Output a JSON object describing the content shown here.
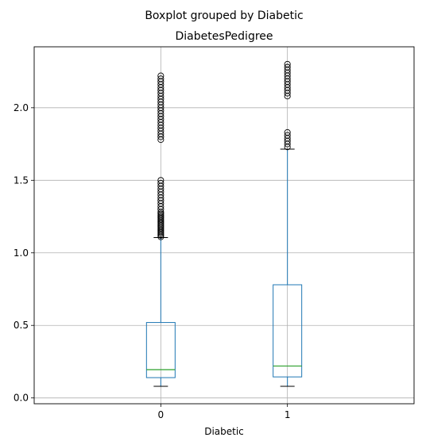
{
  "chart_data": {
    "type": "boxplot",
    "suptitle": "Boxplot grouped by Diabetic",
    "title": "DiabetesPedigree",
    "xlabel": "Diabetic",
    "ylabel": "",
    "categories": [
      "0",
      "1"
    ],
    "ylim": [
      -0.04,
      2.42
    ],
    "yticks": [
      0.0,
      0.5,
      1.0,
      1.5,
      2.0
    ],
    "ytick_labels": [
      "0.0",
      "0.5",
      "1.0",
      "1.5",
      "2.0"
    ],
    "grid": true,
    "boxes": [
      {
        "category": "0",
        "whisker_low": 0.08,
        "q1": 0.14,
        "median": 0.195,
        "q3": 0.52,
        "whisker_high": 1.105,
        "outliers": [
          1.11,
          1.12,
          1.13,
          1.14,
          1.15,
          1.16,
          1.17,
          1.18,
          1.19,
          1.2,
          1.21,
          1.22,
          1.23,
          1.24,
          1.25,
          1.26,
          1.27,
          1.28,
          1.3,
          1.32,
          1.34,
          1.36,
          1.38,
          1.4,
          1.42,
          1.44,
          1.46,
          1.48,
          1.5,
          1.78,
          1.8,
          1.82,
          1.84,
          1.86,
          1.88,
          1.9,
          1.92,
          1.94,
          1.96,
          1.98,
          2.0,
          2.02,
          2.04,
          2.06,
          2.08,
          2.1,
          2.12,
          2.14,
          2.16,
          2.18,
          2.2,
          2.22
        ]
      },
      {
        "category": "1",
        "whisker_low": 0.08,
        "q1": 0.145,
        "median": 0.22,
        "q3": 0.78,
        "whisker_high": 1.715,
        "outliers": [
          1.73,
          1.75,
          1.77,
          1.79,
          1.81,
          1.83,
          2.08,
          2.1,
          2.12,
          2.14,
          2.16,
          2.18,
          2.2,
          2.22,
          2.24,
          2.26,
          2.28,
          2.3
        ]
      }
    ],
    "colors": {
      "box": "#1f77b4",
      "median": "#2ca02c",
      "cap": "#000000",
      "flier": "#000000",
      "grid": "#b0b0b0"
    }
  }
}
